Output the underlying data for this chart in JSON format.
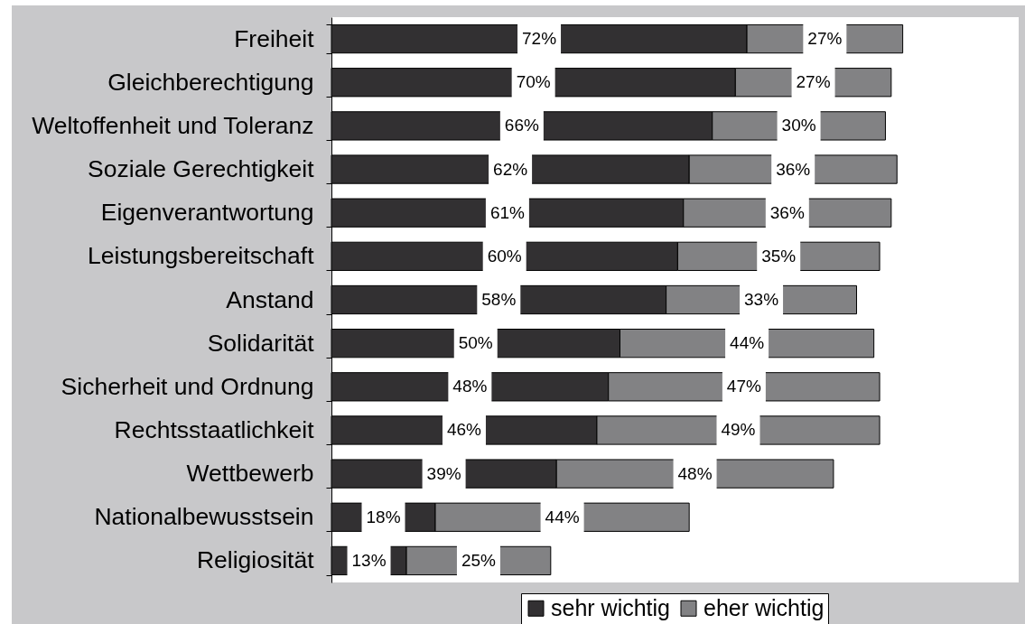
{
  "chart_data": {
    "type": "bar",
    "orientation": "horizontal",
    "stacked": true,
    "categories": [
      "Freiheit",
      "Gleichberechtigung",
      "Weltoffenheit und Toleranz",
      "Soziale Gerechtigkeit",
      "Eigenverantwortung",
      "Leistungsbereitschaft",
      "Anstand",
      "Solidarität",
      "Sicherheit und Ordnung",
      "Rechtsstaatlichkeit",
      "Wettbewerb",
      "Nationalbewusstsein",
      "Religiosität"
    ],
    "series": [
      {
        "name": "sehr wichtig",
        "color": "#323032",
        "values": [
          72,
          70,
          66,
          62,
          61,
          60,
          58,
          50,
          48,
          46,
          39,
          18,
          13
        ],
        "value_labels": [
          "72%",
          "70%",
          "66%",
          "62%",
          "61%",
          "60%",
          "58%",
          "50%",
          "48%",
          "46%",
          "39%",
          "18%",
          "13%"
        ]
      },
      {
        "name": "eher wichtig",
        "color": "#828284",
        "values": [
          27,
          27,
          30,
          36,
          36,
          35,
          33,
          44,
          47,
          49,
          48,
          44,
          25
        ],
        "value_labels": [
          "27%",
          "27%",
          "30%",
          "36%",
          "36%",
          "35%",
          "33%",
          "44%",
          "47%",
          "49%",
          "48%",
          "44%",
          "25%"
        ]
      }
    ],
    "legend": "bottom"
  }
}
